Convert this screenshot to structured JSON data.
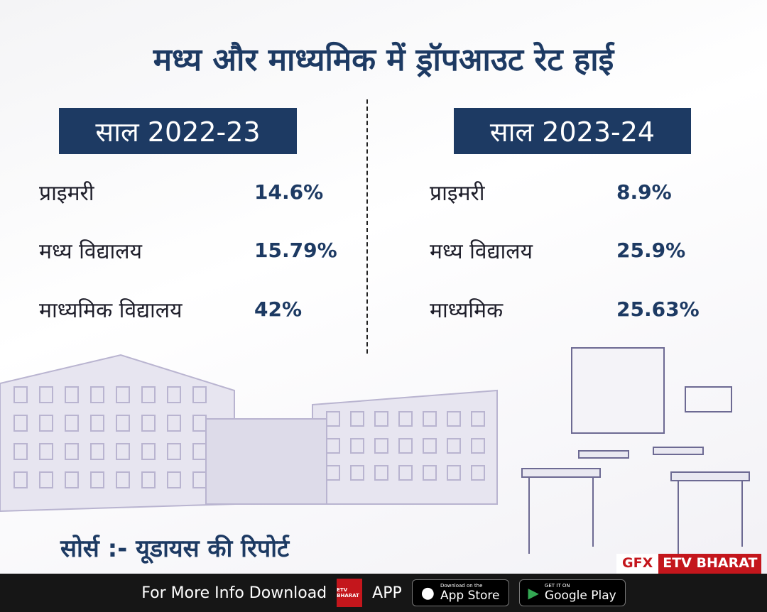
{
  "title": "मध्य और माध्यमिक में ड्रॉपआउट रेट हाई",
  "left": {
    "year": "साल 2022-23",
    "rows": [
      {
        "label": "प्राइमरी",
        "value": "14.6%"
      },
      {
        "label": "मध्य विद्यालय",
        "value": "15.79%"
      },
      {
        "label": "माध्यमिक विद्यालय",
        "value": "42%"
      }
    ]
  },
  "right": {
    "year": "साल 2023-24",
    "rows": [
      {
        "label": "प्राइमरी",
        "value": "8.9%"
      },
      {
        "label": "मध्य विद्यालय",
        "value": "25.9%"
      },
      {
        "label": "माध्यमिक",
        "value": "25.63%"
      }
    ]
  },
  "source": "सोर्स :- यूडायस की रिपोर्ट",
  "badge": {
    "gfx": "GFX",
    "brand": "ETV BHARAT"
  },
  "footer": {
    "text": "For More Info Download",
    "app": "APP",
    "etv_logo": "ETV BHARAT",
    "appstore_small": "Download on the",
    "appstore": "App Store",
    "play_small": "GET IT ON",
    "play": "Google Play"
  },
  "colors": {
    "navy": "#1d3a63",
    "red": "#c4161c",
    "footer": "#161616"
  }
}
